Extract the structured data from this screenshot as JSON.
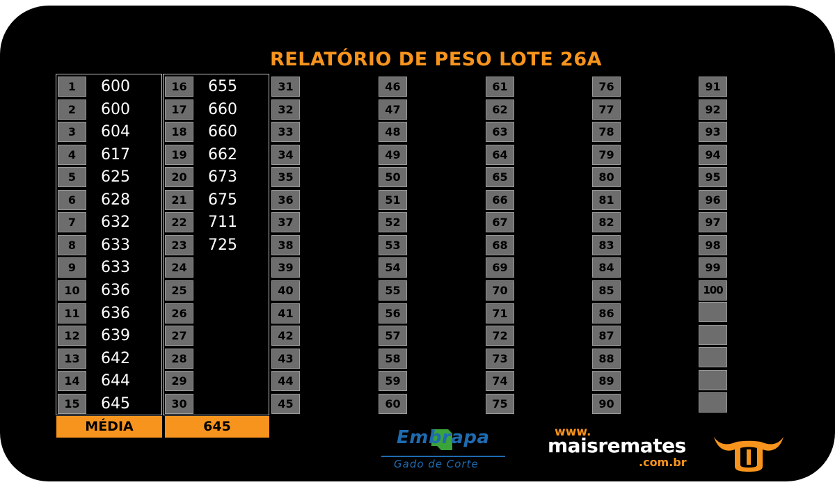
{
  "report": {
    "title": "RELATÓRIO DE PESO LOTE 26A",
    "average_label": "MÉDIA",
    "average_value": "645",
    "columns": [
      [
        {
          "n": "1",
          "w": "600"
        },
        {
          "n": "2",
          "w": "600"
        },
        {
          "n": "3",
          "w": "604"
        },
        {
          "n": "4",
          "w": "617"
        },
        {
          "n": "5",
          "w": "625"
        },
        {
          "n": "6",
          "w": "628"
        },
        {
          "n": "7",
          "w": "632"
        },
        {
          "n": "8",
          "w": "633"
        },
        {
          "n": "9",
          "w": "633"
        },
        {
          "n": "10",
          "w": "636"
        },
        {
          "n": "11",
          "w": "636"
        },
        {
          "n": "12",
          "w": "639"
        },
        {
          "n": "13",
          "w": "642"
        },
        {
          "n": "14",
          "w": "644"
        },
        {
          "n": "15",
          "w": "645"
        }
      ],
      [
        {
          "n": "16",
          "w": "655"
        },
        {
          "n": "17",
          "w": "660"
        },
        {
          "n": "18",
          "w": "660"
        },
        {
          "n": "19",
          "w": "662"
        },
        {
          "n": "20",
          "w": "673"
        },
        {
          "n": "21",
          "w": "675"
        },
        {
          "n": "22",
          "w": "711"
        },
        {
          "n": "23",
          "w": "725"
        },
        {
          "n": "24",
          "w": ""
        },
        {
          "n": "25",
          "w": ""
        },
        {
          "n": "26",
          "w": ""
        },
        {
          "n": "27",
          "w": ""
        },
        {
          "n": "28",
          "w": ""
        },
        {
          "n": "29",
          "w": ""
        },
        {
          "n": "30",
          "w": ""
        }
      ],
      [
        {
          "n": "31",
          "w": ""
        },
        {
          "n": "32",
          "w": ""
        },
        {
          "n": "33",
          "w": ""
        },
        {
          "n": "34",
          "w": ""
        },
        {
          "n": "35",
          "w": ""
        },
        {
          "n": "36",
          "w": ""
        },
        {
          "n": "37",
          "w": ""
        },
        {
          "n": "38",
          "w": ""
        },
        {
          "n": "39",
          "w": ""
        },
        {
          "n": "40",
          "w": ""
        },
        {
          "n": "41",
          "w": ""
        },
        {
          "n": "42",
          "w": ""
        },
        {
          "n": "43",
          "w": ""
        },
        {
          "n": "44",
          "w": ""
        },
        {
          "n": "45",
          "w": ""
        }
      ],
      [
        {
          "n": "46",
          "w": ""
        },
        {
          "n": "47",
          "w": ""
        },
        {
          "n": "48",
          "w": ""
        },
        {
          "n": "49",
          "w": ""
        },
        {
          "n": "50",
          "w": ""
        },
        {
          "n": "51",
          "w": ""
        },
        {
          "n": "52",
          "w": ""
        },
        {
          "n": "53",
          "w": ""
        },
        {
          "n": "54",
          "w": ""
        },
        {
          "n": "55",
          "w": ""
        },
        {
          "n": "56",
          "w": ""
        },
        {
          "n": "57",
          "w": ""
        },
        {
          "n": "58",
          "w": ""
        },
        {
          "n": "59",
          "w": ""
        },
        {
          "n": "60",
          "w": ""
        }
      ],
      [
        {
          "n": "61",
          "w": ""
        },
        {
          "n": "62",
          "w": ""
        },
        {
          "n": "63",
          "w": ""
        },
        {
          "n": "64",
          "w": ""
        },
        {
          "n": "65",
          "w": ""
        },
        {
          "n": "66",
          "w": ""
        },
        {
          "n": "67",
          "w": ""
        },
        {
          "n": "68",
          "w": ""
        },
        {
          "n": "69",
          "w": ""
        },
        {
          "n": "70",
          "w": ""
        },
        {
          "n": "71",
          "w": ""
        },
        {
          "n": "72",
          "w": ""
        },
        {
          "n": "73",
          "w": ""
        },
        {
          "n": "74",
          "w": ""
        },
        {
          "n": "75",
          "w": ""
        }
      ],
      [
        {
          "n": "76",
          "w": ""
        },
        {
          "n": "77",
          "w": ""
        },
        {
          "n": "78",
          "w": ""
        },
        {
          "n": "79",
          "w": ""
        },
        {
          "n": "80",
          "w": ""
        },
        {
          "n": "81",
          "w": ""
        },
        {
          "n": "82",
          "w": ""
        },
        {
          "n": "83",
          "w": ""
        },
        {
          "n": "84",
          "w": ""
        },
        {
          "n": "85",
          "w": ""
        },
        {
          "n": "86",
          "w": ""
        },
        {
          "n": "87",
          "w": ""
        },
        {
          "n": "88",
          "w": ""
        },
        {
          "n": "89",
          "w": ""
        },
        {
          "n": "90",
          "w": ""
        }
      ],
      [
        {
          "n": "91",
          "w": ""
        },
        {
          "n": "92",
          "w": ""
        },
        {
          "n": "93",
          "w": ""
        },
        {
          "n": "94",
          "w": ""
        },
        {
          "n": "95",
          "w": ""
        },
        {
          "n": "96",
          "w": ""
        },
        {
          "n": "97",
          "w": ""
        },
        {
          "n": "98",
          "w": ""
        },
        {
          "n": "99",
          "w": ""
        },
        {
          "n": "100",
          "w": ""
        }
      ]
    ]
  },
  "logos": {
    "embrapa": {
      "name": "Embrapa",
      "subtitle": "Gado de Corte"
    },
    "maisremates": {
      "www": "www.",
      "name": "maisremates",
      "domain": ".com.br"
    }
  },
  "colors": {
    "accent": "#f7941d",
    "background": "#000000",
    "cell": "#6d6d6d",
    "embrapa_blue": "#1f6bb0"
  }
}
